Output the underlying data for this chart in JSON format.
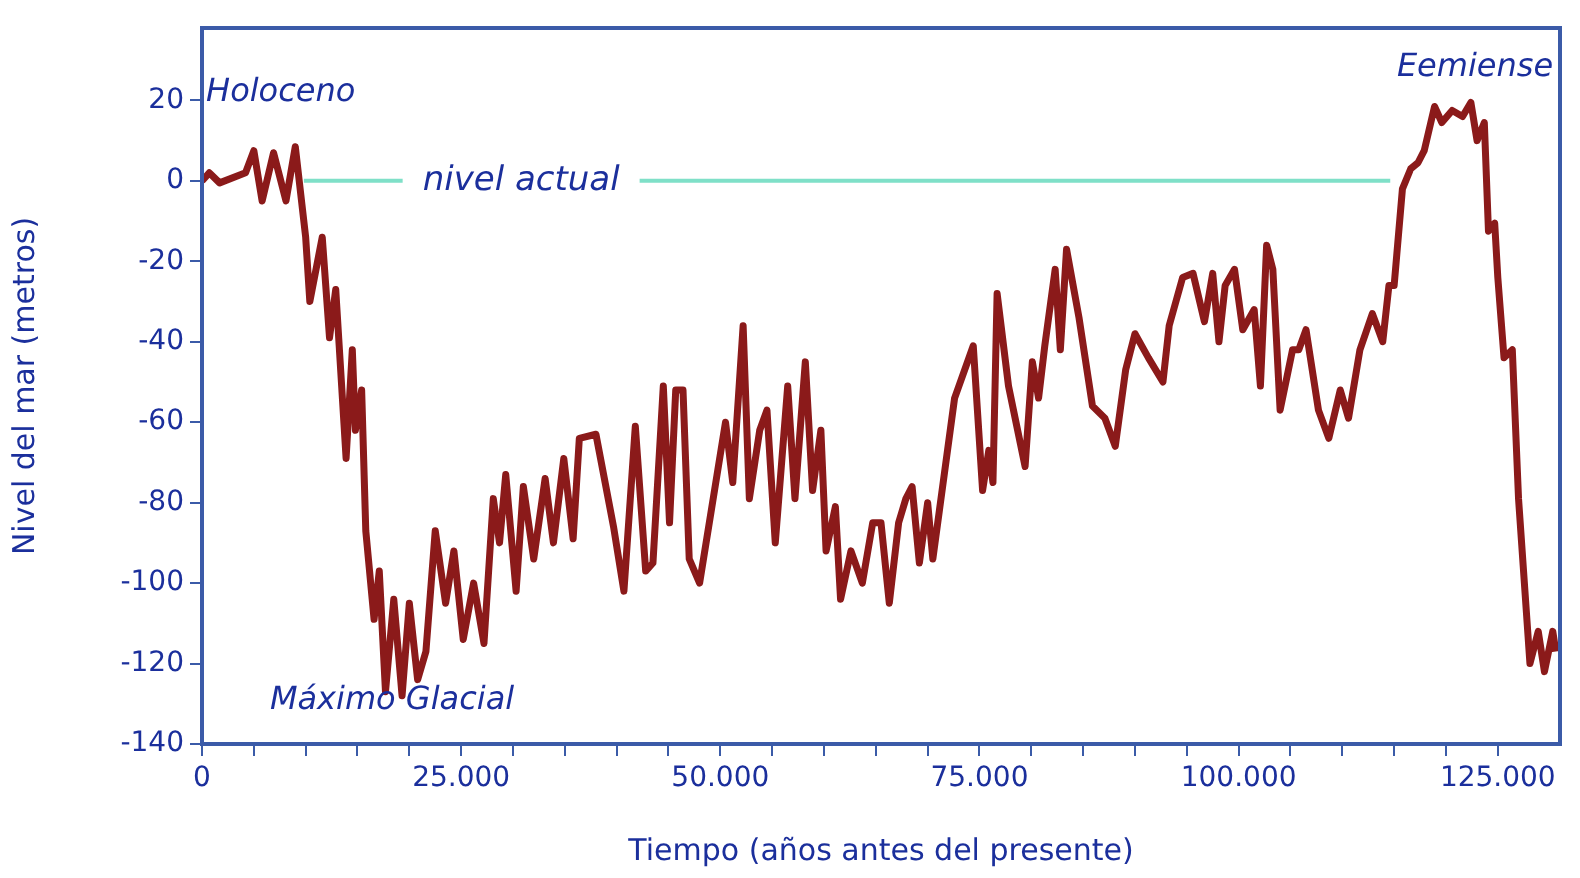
{
  "chart_data": {
    "type": "line",
    "xlabel": "Tiempo (años antes del presente)",
    "ylabel": "Nivel del mar (metros)",
    "x": [
      0,
      700,
      1700,
      4200,
      5000,
      5800,
      6900,
      8100,
      9000,
      10000,
      10400,
      11600,
      12300,
      12900,
      13900,
      14500,
      14800,
      15400,
      15800,
      16600,
      17100,
      17700,
      18500,
      19300,
      20000,
      20800,
      21600,
      22500,
      23500,
      24300,
      25200,
      26200,
      27200,
      28100,
      28700,
      29300,
      30300,
      31000,
      32000,
      33100,
      33900,
      34900,
      35800,
      36400,
      38000,
      39700,
      40700,
      41800,
      42800,
      43500,
      44500,
      45100,
      45700,
      46400,
      47000,
      48000,
      50500,
      51200,
      52200,
      52800,
      53800,
      54500,
      55300,
      56500,
      57200,
      58200,
      58900,
      59700,
      60200,
      61100,
      61600,
      62600,
      63700,
      64700,
      65500,
      66300,
      67200,
      67900,
      68500,
      69200,
      70000,
      70500,
      72600,
      74400,
      75300,
      75900,
      76300,
      76700,
      77800,
      79400,
      80100,
      80700,
      81300,
      82300,
      82800,
      83400,
      84600,
      85900,
      87100,
      88100,
      89100,
      90000,
      91300,
      92700,
      93300,
      94600,
      95600,
      96700,
      97500,
      98100,
      98700,
      99600,
      100400,
      101500,
      102100,
      102700,
      103300,
      104000,
      105200,
      105800,
      106500,
      107700,
      108700,
      109800,
      110600,
      111700,
      112900,
      113900,
      114500,
      115000,
      115800,
      116600,
      117300,
      117900,
      118900,
      119600,
      120600,
      121600,
      122400,
      123000,
      123700,
      124100,
      124700,
      125000,
      125600,
      126400,
      127000,
      128100,
      128900,
      129500,
      130300,
      130600
    ],
    "series": [
      {
        "color": "#8b1a1a",
        "values": [
          0,
          2,
          -0.5,
          2,
          7.5,
          -5,
          7,
          -5,
          8.5,
          -14,
          -30,
          -14,
          -39,
          -27,
          -69,
          -42,
          -62,
          -52,
          -87,
          -109,
          -97,
          -127,
          -104,
          -128,
          -105,
          -124,
          -117,
          -87,
          -105,
          -92,
          -114,
          -100,
          -115,
          -79,
          -90,
          -73,
          -102,
          -76,
          -94,
          -74,
          -90,
          -69,
          -89,
          -64,
          -63,
          -86,
          -102,
          -61,
          -97,
          -95,
          -51,
          -85,
          -52,
          -52,
          -94,
          -100,
          -60,
          -75,
          -36,
          -79,
          -62,
          -57,
          -90,
          -51,
          -79,
          -45,
          -77,
          -62,
          -92,
          -81,
          -104,
          -92,
          -100,
          -85,
          -85,
          -105,
          -85,
          -79,
          -76,
          -95,
          -80,
          -94,
          -54,
          -41,
          -77,
          -67,
          -75,
          -28,
          -51,
          -71,
          -45,
          -54,
          -41,
          -22,
          -42,
          -17,
          -34,
          -56,
          -59,
          -66,
          -47,
          -38,
          -44,
          -50,
          -36,
          -24,
          -23,
          -35,
          -23,
          -40,
          -26,
          -22,
          -37,
          -32,
          -51,
          -16,
          -22,
          -57,
          -42,
          -42,
          -37,
          -57,
          -64,
          -52,
          -59,
          -42,
          -33,
          -40,
          -26,
          -26,
          -2,
          3,
          4.5,
          7.5,
          18.5,
          14.5,
          17.5,
          16,
          19.5,
          10,
          14.5,
          -12.5,
          -10.5,
          -24,
          -44,
          -42,
          -79,
          -120,
          -112,
          -122,
          -112,
          -117
        ]
      }
    ],
    "xlim": [
      0,
      131000
    ],
    "ylim": [
      -140,
      38
    ],
    "xticks": [
      0,
      {
        "value": 5000,
        "label": null
      },
      {
        "value": 10000,
        "label": null
      },
      {
        "value": 15000,
        "label": null
      },
      {
        "value": 20000,
        "label": null
      },
      {
        "value": 25000,
        "label": "25.000"
      },
      {
        "value": 30000,
        "label": null
      },
      {
        "value": 35000,
        "label": null
      },
      {
        "value": 40000,
        "label": null
      },
      {
        "value": 45000,
        "label": null
      },
      {
        "value": 50000,
        "label": "50.000"
      },
      {
        "value": 55000,
        "label": null
      },
      {
        "value": 60000,
        "label": null
      },
      {
        "value": 65000,
        "label": null
      },
      {
        "value": 70000,
        "label": null
      },
      {
        "value": 75000,
        "label": "75.000"
      },
      {
        "value": 80000,
        "label": null
      },
      {
        "value": 85000,
        "label": null
      },
      {
        "value": 90000,
        "label": null
      },
      {
        "value": 95000,
        "label": null
      },
      {
        "value": 100000,
        "label": "100.000"
      },
      {
        "value": 105000,
        "label": null
      },
      {
        "value": 110000,
        "label": null
      },
      {
        "value": 115000,
        "label": null
      },
      {
        "value": 120000,
        "label": null
      },
      {
        "value": 125000,
        "label": "125.000"
      }
    ],
    "yticks": [
      20,
      0,
      -20,
      -40,
      -60,
      -80,
      -100,
      -120,
      -140
    ],
    "ref_lines": [
      {
        "axis": "y",
        "value": 0,
        "label": "nivel actual",
        "color": "#7fe0c8"
      }
    ],
    "annotations": [
      "Holoceno",
      "Máximo Glacial",
      "Eemiense"
    ],
    "grid": false,
    "legend": false,
    "marker": "none",
    "line_style": "solid"
  }
}
